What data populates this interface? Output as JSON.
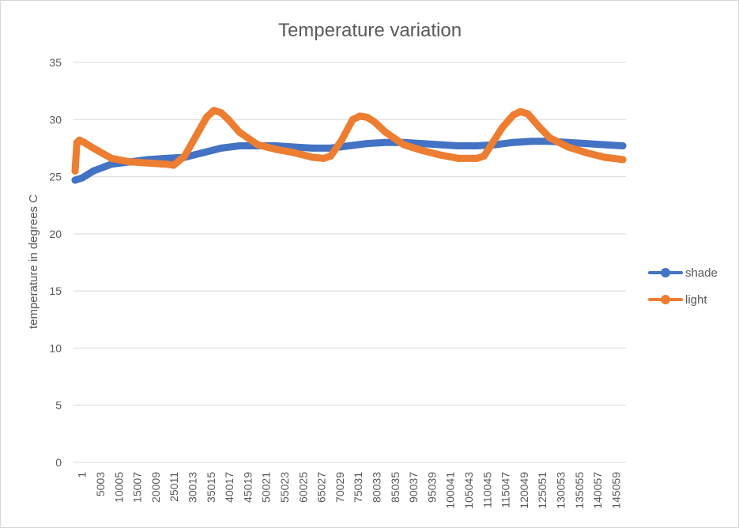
{
  "chart_data": {
    "type": "line",
    "title": "Temperature variation",
    "xlabel": "",
    "ylabel": "temperature in degrees C",
    "ylim": [
      0,
      35
    ],
    "yticks": [
      0,
      5,
      10,
      15,
      20,
      25,
      30,
      35
    ],
    "xlim": [
      1,
      150000
    ],
    "xtick_labels": [
      "1",
      "5003",
      "10005",
      "15007",
      "20009",
      "25011",
      "30013",
      "35015",
      "40017",
      "45019",
      "50021",
      "55023",
      "60025",
      "65027",
      "70029",
      "75031",
      "80033",
      "85035",
      "90037",
      "95039",
      "100041",
      "105043",
      "110045",
      "115047",
      "120049",
      "125051",
      "130053",
      "135055",
      "140057",
      "145059"
    ],
    "grid": "horizontal",
    "legend": "right",
    "series": [
      {
        "name": "shade",
        "color": "#4472c4",
        "x": [
          1,
          2000,
          5000,
          10000,
          15000,
          20000,
          25000,
          30000,
          35000,
          40000,
          45000,
          50000,
          55000,
          60000,
          65000,
          70000,
          75000,
          80000,
          85000,
          90000,
          95000,
          100000,
          105000,
          110000,
          115000,
          120000,
          125000,
          130000,
          135000,
          140000,
          145000,
          150000
        ],
        "y": [
          24.7,
          24.9,
          25.5,
          26.1,
          26.3,
          26.5,
          26.6,
          26.7,
          27.1,
          27.5,
          27.7,
          27.7,
          27.7,
          27.6,
          27.5,
          27.5,
          27.7,
          27.9,
          28.0,
          28.0,
          27.9,
          27.8,
          27.7,
          27.7,
          27.8,
          28.0,
          28.1,
          28.1,
          28.0,
          27.9,
          27.8,
          27.7
        ]
      },
      {
        "name": "light",
        "color": "#ed7d31",
        "x": [
          1,
          500,
          1200,
          2500,
          5000,
          10000,
          15000,
          20000,
          25000,
          27000,
          30000,
          33000,
          36000,
          38000,
          40000,
          42000,
          45000,
          50000,
          55000,
          60000,
          65000,
          68000,
          70000,
          73000,
          76000,
          78000,
          80000,
          82000,
          85000,
          90000,
          95000,
          100000,
          105000,
          110000,
          112000,
          114000,
          117000,
          120000,
          122000,
          124000,
          127000,
          130000,
          135000,
          140000,
          145000,
          150000
        ],
        "y": [
          25.5,
          28.0,
          28.2,
          28.0,
          27.5,
          26.6,
          26.3,
          26.2,
          26.1,
          26.0,
          26.8,
          28.5,
          30.2,
          30.8,
          30.6,
          30.0,
          28.9,
          27.8,
          27.4,
          27.1,
          26.7,
          26.6,
          26.8,
          28.2,
          30.0,
          30.3,
          30.2,
          29.8,
          28.9,
          27.8,
          27.3,
          26.9,
          26.6,
          26.6,
          26.8,
          27.8,
          29.3,
          30.4,
          30.7,
          30.5,
          29.4,
          28.4,
          27.6,
          27.1,
          26.7,
          26.5
        ]
      }
    ]
  }
}
